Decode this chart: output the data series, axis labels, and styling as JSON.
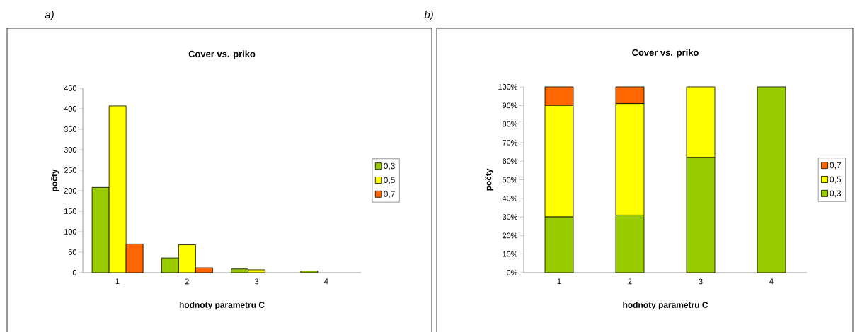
{
  "chart_data": [
    {
      "type": "bar",
      "title": "Cover vs. priko",
      "xlabel": "hodnoty parametru C",
      "ylabel": "počty",
      "annotations": [
        "a)"
      ],
      "categories": [
        "1",
        "2",
        "3",
        "4"
      ],
      "series": [
        {
          "name": "0,3",
          "color": "#99cc00",
          "values": [
            208,
            36,
            9,
            4
          ]
        },
        {
          "name": "0,5",
          "color": "#ffff00",
          "values": [
            407,
            68,
            7,
            null
          ]
        },
        {
          "name": "0,7",
          "color": "#ff6600",
          "values": [
            70,
            12,
            null,
            null
          ]
        }
      ],
      "ylim": [
        0,
        450
      ],
      "yticks": [
        0,
        50,
        100,
        150,
        200,
        250,
        300,
        350,
        400,
        450
      ],
      "legend": "right"
    },
    {
      "type": "bar",
      "title": "Cover vs. priko",
      "xlabel": "hodnoty parametru C",
      "ylabel": "počty",
      "annotations": [
        "b)"
      ],
      "stacked": true,
      "categories": [
        "1",
        "2",
        "3",
        "4"
      ],
      "series": [
        {
          "name": "0,3",
          "color": "#99cc00",
          "values": [
            30,
            31,
            62,
            100
          ]
        },
        {
          "name": "0,5",
          "color": "#ffff00",
          "values": [
            60,
            60,
            38,
            0
          ]
        },
        {
          "name": "0,7",
          "color": "#ff6600",
          "values": [
            10,
            9,
            0,
            0
          ]
        }
      ],
      "ylim": [
        0,
        100
      ],
      "yticks": [
        {
          "value": 0,
          "label": "0%"
        },
        {
          "value": 10,
          "label": "10%"
        },
        {
          "value": 20,
          "label": "20%"
        },
        {
          "value": 30,
          "label": "30%"
        },
        {
          "value": 40,
          "label": "40%"
        },
        {
          "value": 50,
          "label": "50%"
        },
        {
          "value": 60,
          "label": "60%"
        },
        {
          "value": 70,
          "label": "70%"
        },
        {
          "value": 80,
          "label": "80%"
        },
        {
          "value": 90,
          "label": "90%"
        },
        {
          "value": 100,
          "label": "100%"
        }
      ],
      "legend": "right"
    }
  ]
}
